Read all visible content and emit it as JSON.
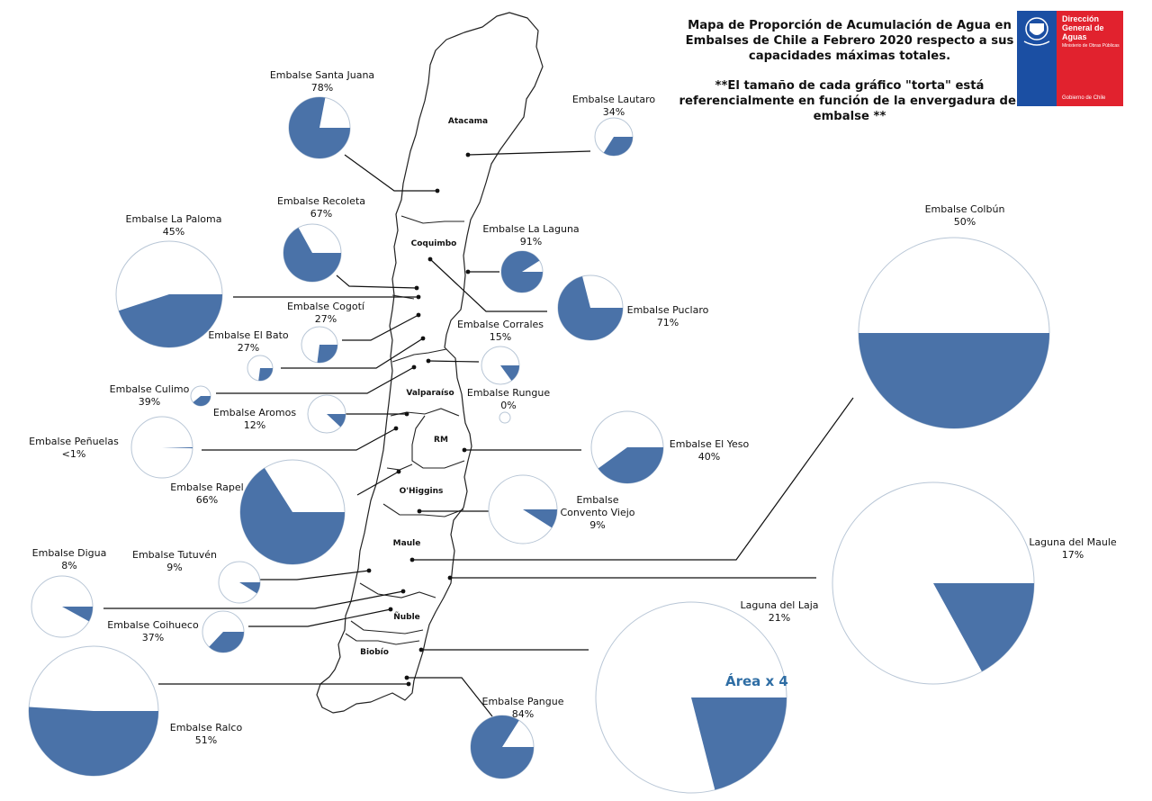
{
  "title": "Mapa de Proporción de Acumulación de Agua en Embalses de Chile a Febrero 2020 respecto a sus capacidades máximas totales.",
  "note": "**El tamaño de cada gráfico \"torta\" está referencialmente en función de la envergadura del embalse **",
  "logo": {
    "name": "Dirección General de Aguas",
    "ministry": "Ministerio de Obras Públicas",
    "government": "Gobierno de Chile"
  },
  "colors": {
    "filled": "#4a72a8",
    "empty": "#ffffff",
    "outline": "#b8c6d6"
  },
  "area_note": "Área x 4",
  "regions": [
    "Atacama",
    "Coquimbo",
    "Valparaíso",
    "RM",
    "O'Higgins",
    "Maule",
    "Ñuble",
    "Biobío"
  ],
  "reservoirs": [
    {
      "name": "Embalse Santa Juana",
      "pct_label": "78%",
      "value": 78
    },
    {
      "name": "Embalse Lautaro",
      "pct_label": "34%",
      "value": 34
    },
    {
      "name": "Embalse La Paloma",
      "pct_label": "45%",
      "value": 45
    },
    {
      "name": "Embalse Recoleta",
      "pct_label": "67%",
      "value": 67
    },
    {
      "name": "Embalse La Laguna",
      "pct_label": "91%",
      "value": 91
    },
    {
      "name": "Embalse Puclaro",
      "pct_label": "71%",
      "value": 71
    },
    {
      "name": "Embalse Cogotí",
      "pct_label": "27%",
      "value": 27
    },
    {
      "name": "Embalse El Bato",
      "pct_label": "27%",
      "value": 27
    },
    {
      "name": "Embalse Corrales",
      "pct_label": "15%",
      "value": 15
    },
    {
      "name": "Embalse Culimo",
      "pct_label": "39%",
      "value": 39
    },
    {
      "name": "Embalse Aromos",
      "pct_label": "12%",
      "value": 12
    },
    {
      "name": "Embalse Rungue",
      "pct_label": "0%",
      "value": 0
    },
    {
      "name": "Embalse Peñuelas",
      "pct_label": "<1%",
      "value": 0.5
    },
    {
      "name": "Embalse El Yeso",
      "pct_label": "40%",
      "value": 40
    },
    {
      "name": "Embalse Rapel",
      "pct_label": "66%",
      "value": 66
    },
    {
      "name": "Embalse Convento Viejo",
      "pct_label": "9%",
      "value": 9
    },
    {
      "name": "Embalse Digua",
      "pct_label": "8%",
      "value": 8
    },
    {
      "name": "Embalse Tutuvén",
      "pct_label": "9%",
      "value": 9
    },
    {
      "name": "Embalse Coihueco",
      "pct_label": "37%",
      "value": 37
    },
    {
      "name": "Embalse Ralco",
      "pct_label": "51%",
      "value": 51
    },
    {
      "name": "Embalse Pangue",
      "pct_label": "84%",
      "value": 84
    },
    {
      "name": "Laguna del Laja",
      "pct_label": "21%",
      "value": 21
    },
    {
      "name": "Laguna del Maule",
      "pct_label": "17%",
      "value": 17
    },
    {
      "name": "Embalse Colbún",
      "pct_label": "50%",
      "value": 50
    }
  ]
}
